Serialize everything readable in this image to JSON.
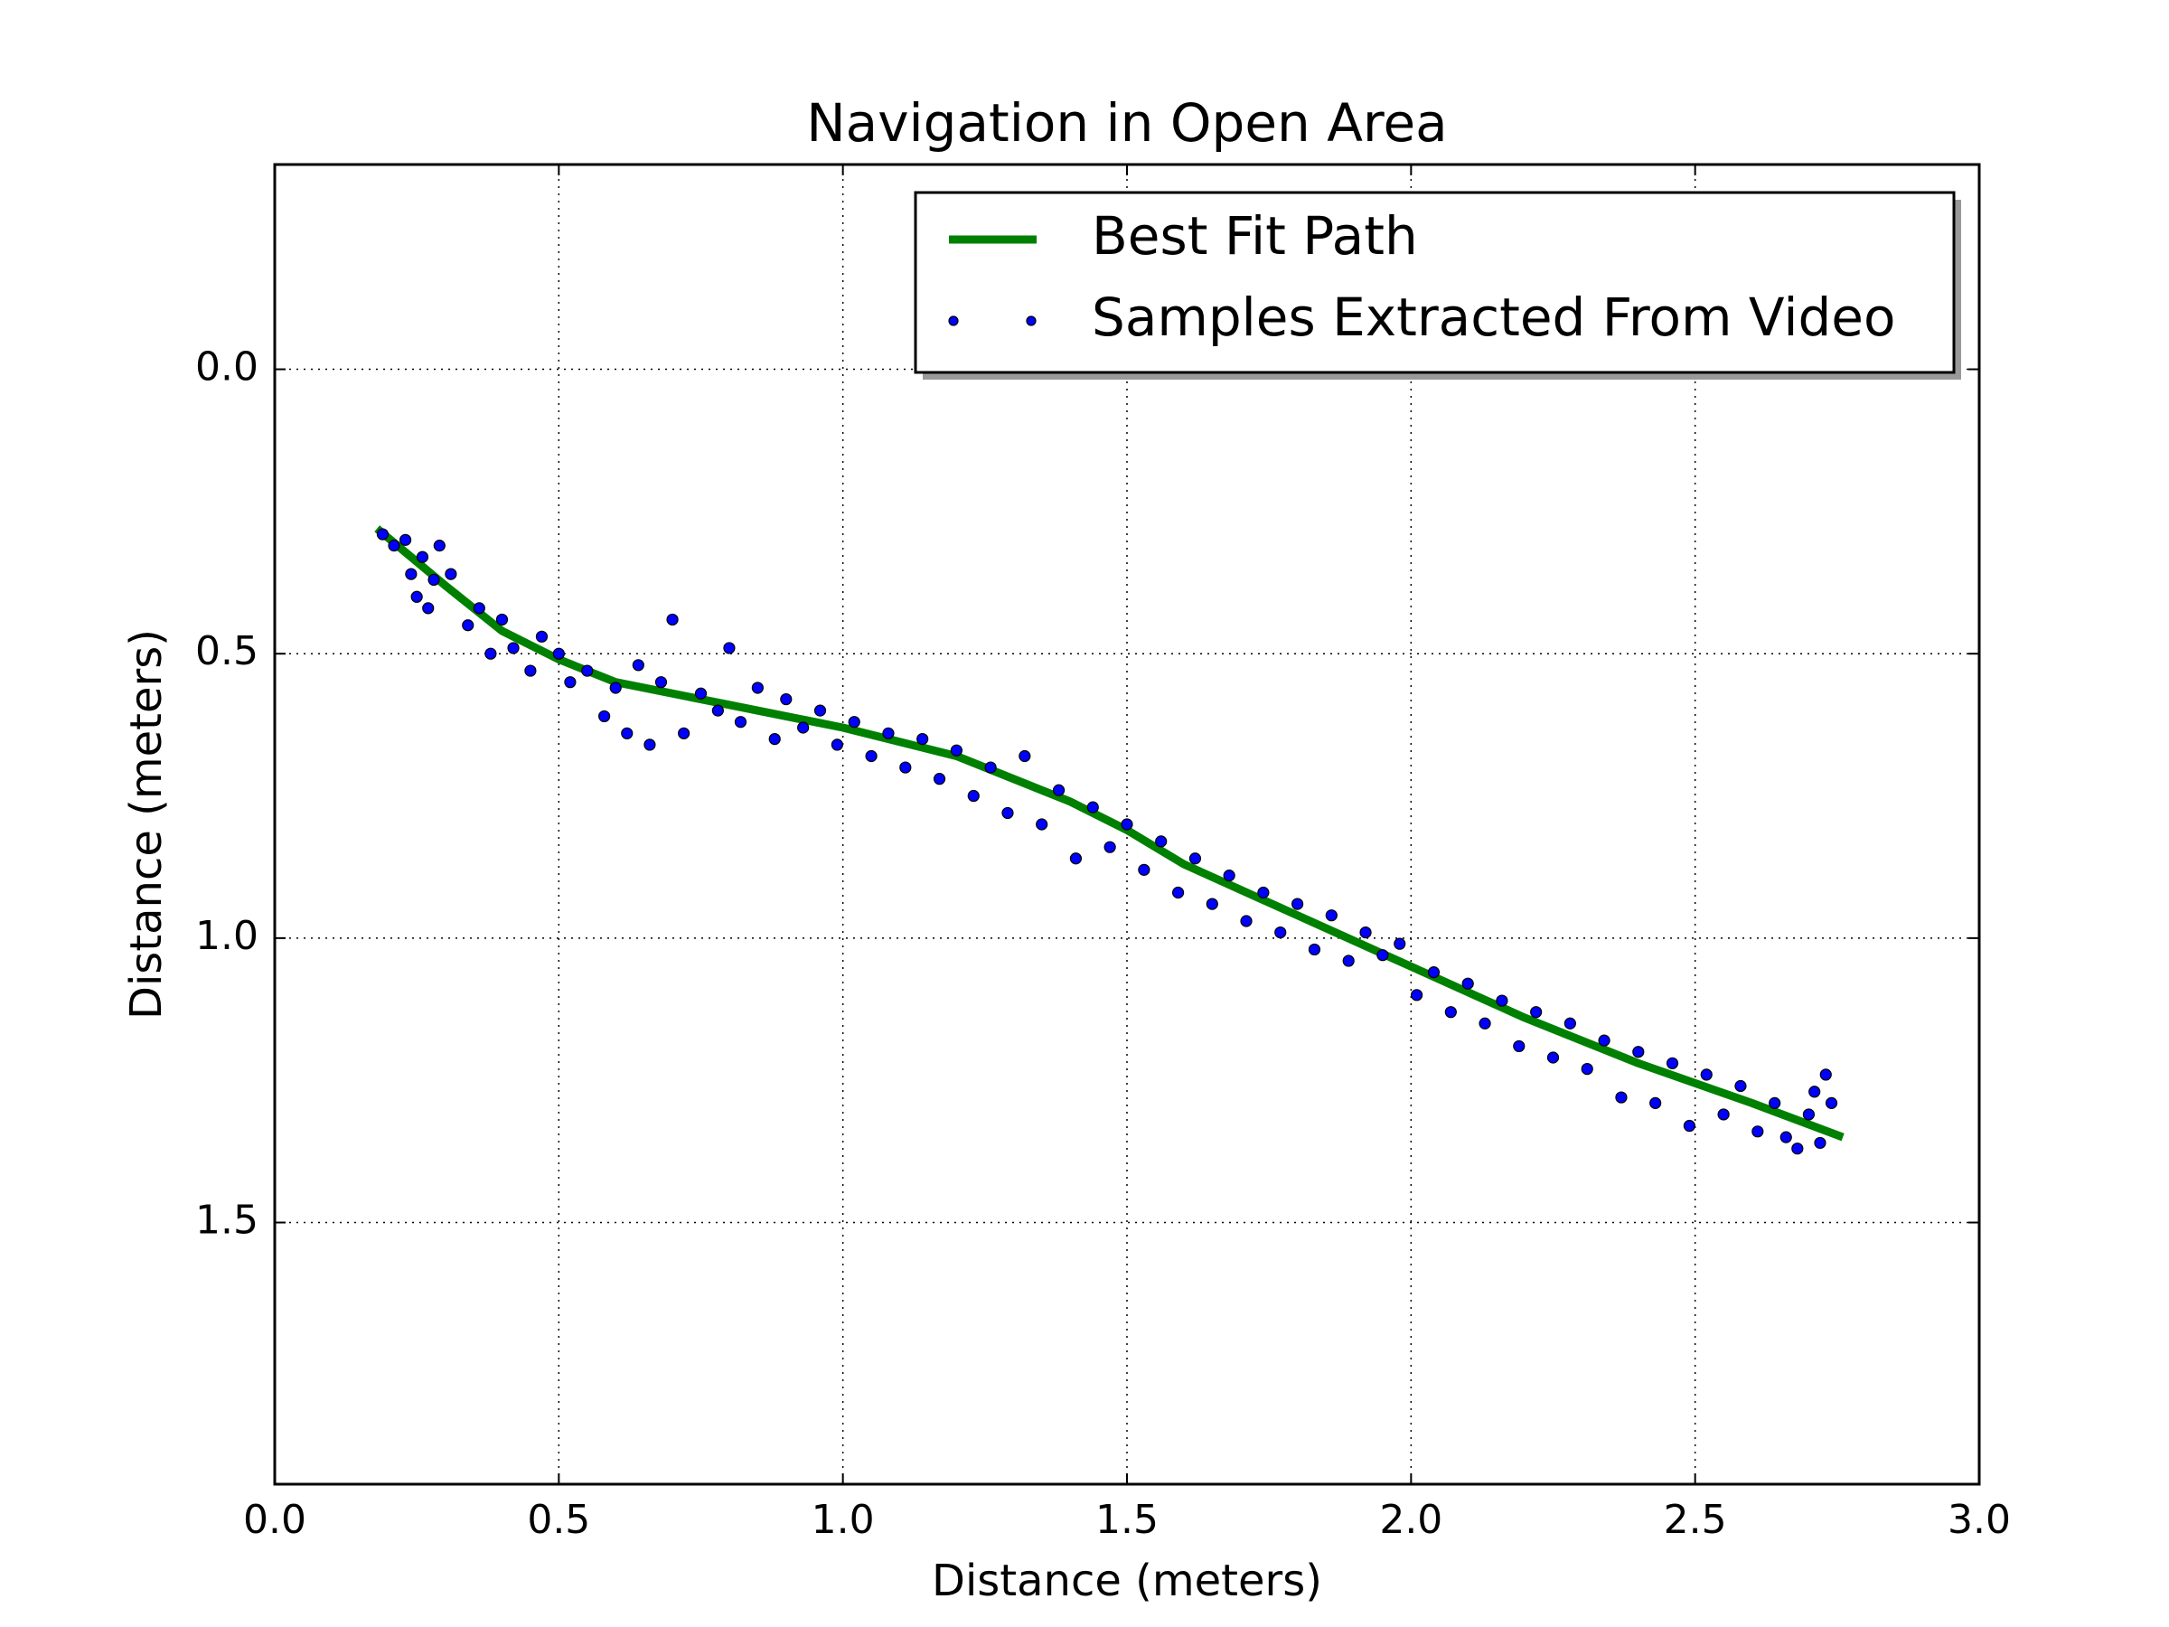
{
  "chart_data": {
    "type": "scatter",
    "title": "Navigation in Open Area",
    "xlabel": "Distance (meters)",
    "ylabel": "Distance (meters)",
    "xlim": [
      0,
      3
    ],
    "ylim": [
      -0.36,
      1.96
    ],
    "y_inverted": true,
    "grid": true,
    "legend": "upper right",
    "xticks": [
      {
        "value": 0,
        "label": "0.0"
      },
      0.5,
      {
        "value": 1,
        "label": "1.0"
      },
      1.5,
      {
        "value": 2,
        "label": "2.0"
      },
      2.5,
      {
        "value": 3,
        "label": "3.0"
      }
    ],
    "yticks": [
      {
        "value": 0,
        "label": "0.0"
      },
      0.5,
      {
        "value": 1,
        "label": "1.0"
      },
      1.5
    ],
    "series": [
      {
        "name": "Best Fit Path",
        "type": "line",
        "color": "#008000",
        "x": [
          0.18,
          0.3,
          0.4,
          0.5,
          0.6,
          0.8,
          1.0,
          1.2,
          1.4,
          1.5,
          1.6,
          1.8,
          2.0,
          2.2,
          2.4,
          2.6,
          2.76
        ],
        "values": [
          0.28,
          0.38,
          0.46,
          0.51,
          0.55,
          0.59,
          0.63,
          0.68,
          0.76,
          0.81,
          0.87,
          0.96,
          1.05,
          1.14,
          1.22,
          1.29,
          1.35
        ]
      },
      {
        "name": "Samples Extracted From Video",
        "type": "scatter",
        "color": "#0000ff",
        "x": [
          0.19,
          0.21,
          0.23,
          0.24,
          0.25,
          0.26,
          0.27,
          0.28,
          0.29,
          0.31,
          0.34,
          0.36,
          0.38,
          0.4,
          0.42,
          0.45,
          0.47,
          0.5,
          0.52,
          0.55,
          0.58,
          0.6,
          0.62,
          0.64,
          0.66,
          0.68,
          0.7,
          0.72,
          0.75,
          0.78,
          0.8,
          0.82,
          0.85,
          0.88,
          0.9,
          0.93,
          0.96,
          0.99,
          1.02,
          1.05,
          1.08,
          1.11,
          1.14,
          1.17,
          1.2,
          1.23,
          1.26,
          1.29,
          1.32,
          1.35,
          1.38,
          1.41,
          1.44,
          1.47,
          1.5,
          1.53,
          1.56,
          1.59,
          1.62,
          1.65,
          1.68,
          1.71,
          1.74,
          1.77,
          1.8,
          1.83,
          1.86,
          1.89,
          1.92,
          1.95,
          1.98,
          2.01,
          2.04,
          2.07,
          2.1,
          2.13,
          2.16,
          2.19,
          2.22,
          2.25,
          2.28,
          2.31,
          2.34,
          2.37,
          2.4,
          2.43,
          2.46,
          2.49,
          2.52,
          2.55,
          2.58,
          2.61,
          2.64,
          2.66,
          2.68,
          2.7,
          2.71,
          2.72,
          2.73,
          2.74
        ],
        "values": [
          0.29,
          0.31,
          0.3,
          0.36,
          0.4,
          0.33,
          0.42,
          0.37,
          0.31,
          0.36,
          0.45,
          0.42,
          0.5,
          0.44,
          0.49,
          0.53,
          0.47,
          0.5,
          0.55,
          0.53,
          0.61,
          0.56,
          0.64,
          0.52,
          0.66,
          0.55,
          0.44,
          0.64,
          0.57,
          0.6,
          0.49,
          0.62,
          0.56,
          0.65,
          0.58,
          0.63,
          0.6,
          0.66,
          0.62,
          0.68,
          0.64,
          0.7,
          0.65,
          0.72,
          0.67,
          0.75,
          0.7,
          0.78,
          0.68,
          0.8,
          0.74,
          0.86,
          0.77,
          0.84,
          0.8,
          0.88,
          0.83,
          0.92,
          0.86,
          0.94,
          0.89,
          0.97,
          0.92,
          0.99,
          0.94,
          1.02,
          0.96,
          1.04,
          0.99,
          1.03,
          1.01,
          1.1,
          1.06,
          1.13,
          1.08,
          1.15,
          1.11,
          1.19,
          1.13,
          1.21,
          1.15,
          1.23,
          1.18,
          1.28,
          1.2,
          1.29,
          1.22,
          1.33,
          1.24,
          1.31,
          1.26,
          1.34,
          1.29,
          1.35,
          1.37,
          1.31,
          1.27,
          1.36,
          1.24,
          1.29
        ]
      }
    ]
  }
}
